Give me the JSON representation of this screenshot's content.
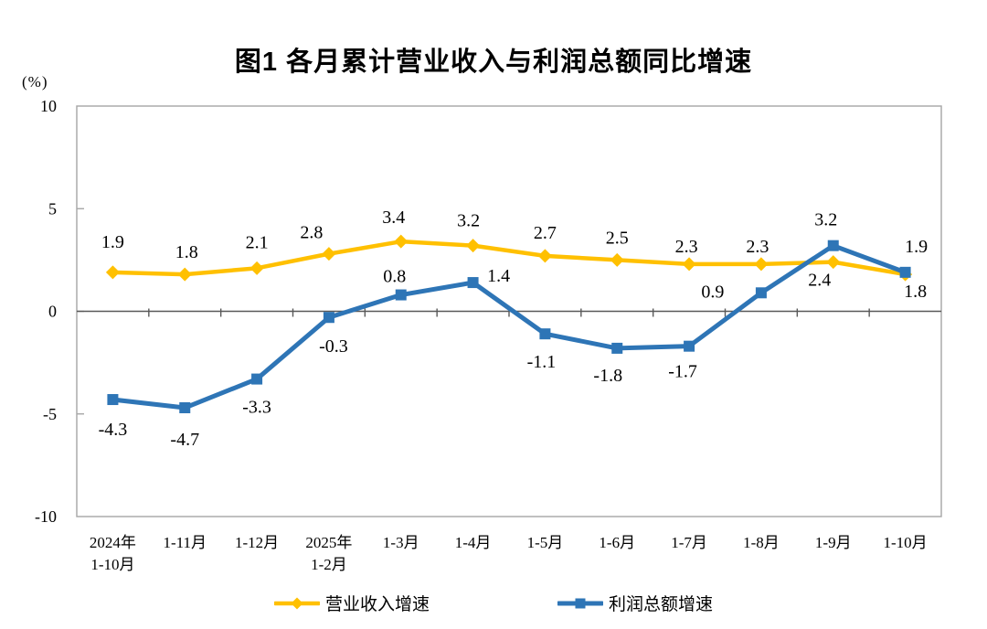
{
  "title": "图1  各月累计营业收入与利润总额同比增速",
  "y_axis_unit": "(%)",
  "colors": {
    "revenue": "#FFC000",
    "profit": "#2E75B6",
    "plot_border": "#A6A6A6",
    "zero_axis": "#595959",
    "text": "#000000"
  },
  "legend": [
    {
      "name": "营业收入增速",
      "series": "revenue"
    },
    {
      "name": "利润总额增速",
      "series": "profit"
    }
  ],
  "chart_data": {
    "type": "line",
    "title": "图1  各月累计营业收入与利润总额同比增速",
    "ylabel": "(%)",
    "ylim": [
      -10,
      10
    ],
    "yticks": [
      10,
      5,
      0,
      -5,
      -10
    ],
    "grid": false,
    "legend_position": "bottom",
    "categories": [
      "2024年\n1-10月",
      "1-11月",
      "1-12月",
      "2025年\n1-2月",
      "1-3月",
      "1-4月",
      "1-5月",
      "1-6月",
      "1-7月",
      "1-8月",
      "1-9月",
      "1-10月"
    ],
    "series": [
      {
        "name": "营业收入增速",
        "color_key": "revenue",
        "marker": "diamond",
        "values": [
          1.9,
          1.8,
          2.1,
          2.8,
          3.4,
          3.2,
          2.7,
          2.5,
          2.3,
          2.3,
          2.4,
          1.8
        ],
        "label_offsets": [
          [
            0,
            -33
          ],
          [
            2,
            -24
          ],
          [
            0,
            -28
          ],
          [
            -19,
            -23
          ],
          [
            -8,
            -26
          ],
          [
            -5,
            -27
          ],
          [
            0,
            -25
          ],
          [
            0,
            -24
          ],
          [
            -3,
            -19
          ],
          [
            -4,
            -19
          ],
          [
            -15,
            20
          ],
          [
            11,
            19
          ]
        ]
      },
      {
        "name": "利润总额增速",
        "color_key": "profit",
        "marker": "square",
        "values": [
          -4.3,
          -4.7,
          -3.3,
          -0.3,
          0.8,
          1.4,
          -1.1,
          -1.8,
          -1.7,
          0.9,
          3.2,
          1.9
        ],
        "label_offsets": [
          [
            0,
            33
          ],
          [
            0,
            35
          ],
          [
            0,
            31
          ],
          [
            5,
            32
          ],
          [
            -7,
            -20
          ],
          [
            28,
            -7
          ],
          [
            -4,
            31
          ],
          [
            -10,
            30
          ],
          [
            -7,
            28
          ],
          [
            -53,
            -1
          ],
          [
            -8,
            -28
          ],
          [
            12,
            -28
          ]
        ]
      }
    ]
  }
}
